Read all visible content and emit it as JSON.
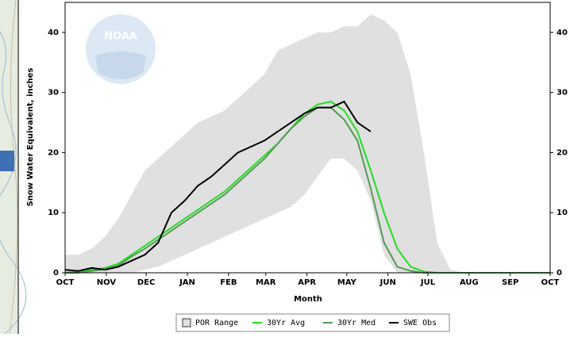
{
  "logo": "NOAA",
  "chart_data": {
    "type": "line",
    "x_label": "Month",
    "y_label": "Snow Water Equivalent, inches",
    "x": [
      0,
      10,
      20,
      30,
      40,
      50,
      60,
      70,
      80,
      90,
      100,
      110,
      120,
      130,
      140,
      150,
      160,
      170,
      180,
      190,
      200,
      210,
      220,
      230,
      240,
      250,
      260,
      270,
      280,
      290,
      300,
      310,
      320,
      330,
      340,
      350,
      360,
      365
    ],
    "xlim": [
      0,
      365
    ],
    "xticks": [
      {
        "value": 0,
        "label": "OCT"
      },
      {
        "value": 31,
        "label": "NOV"
      },
      {
        "value": 61,
        "label": "DEC"
      },
      {
        "value": 92,
        "label": "JAN"
      },
      {
        "value": 123,
        "label": "FEB"
      },
      {
        "value": 151,
        "label": "MAR"
      },
      {
        "value": 182,
        "label": "APR"
      },
      {
        "value": 212,
        "label": "MAY"
      },
      {
        "value": 243,
        "label": "JUN"
      },
      {
        "value": 273,
        "label": "JUL"
      },
      {
        "value": 304,
        "label": "AUG"
      },
      {
        "value": 335,
        "label": "SEP"
      },
      {
        "value": 365,
        "label": "OCT"
      }
    ],
    "ylim": [
      0,
      45
    ],
    "yticks": [
      0,
      10,
      20,
      30,
      40
    ],
    "grid": false,
    "series": [
      {
        "name": "POR Range",
        "color": "#e0e0e0",
        "values": [
          3,
          3,
          4,
          6,
          9,
          13,
          17,
          19,
          21,
          23,
          25,
          26,
          27,
          29,
          31,
          33,
          37,
          38,
          39,
          40,
          40,
          41,
          41,
          43,
          42,
          40,
          33,
          20,
          5,
          0.5,
          0,
          0,
          0,
          0,
          0,
          0,
          0,
          0.3
        ],
        "lower": [
          0,
          0,
          0,
          0,
          0,
          0,
          0.5,
          1,
          2,
          3,
          4,
          5,
          6,
          7,
          8,
          9,
          10,
          11,
          13,
          16,
          19,
          19,
          17,
          12,
          3,
          0,
          0,
          0,
          0,
          0,
          0,
          0,
          0,
          0,
          0,
          0,
          0,
          0
        ]
      },
      {
        "name": "30Yr Avg",
        "color": "#22dd22",
        "values": [
          0,
          0.2,
          0.5,
          0.8,
          1.5,
          3,
          4.5,
          6,
          7.5,
          9,
          10.5,
          12,
          13.5,
          15.5,
          17.5,
          19.5,
          21.5,
          24,
          26.5,
          28,
          28.5,
          27,
          23.5,
          17,
          10,
          4,
          1,
          0.2,
          0,
          0,
          0,
          0,
          0,
          0,
          0,
          0,
          0,
          0
        ]
      },
      {
        "name": "30Yr Med",
        "color": "#559955",
        "values": [
          0,
          0,
          0.3,
          0.6,
          1.2,
          2.7,
          4,
          5.5,
          7,
          8.5,
          10,
          11.5,
          13,
          15,
          17,
          19,
          21.5,
          24,
          26,
          27.5,
          27.5,
          25.5,
          22,
          14,
          5,
          1,
          0.3,
          0,
          0,
          0,
          0,
          0,
          0,
          0,
          0,
          0,
          0,
          0
        ]
      },
      {
        "name": "SWE Obs",
        "color": "#000000",
        "values": [
          0.5,
          0.3,
          0.8,
          0.5,
          1,
          2,
          3,
          5,
          10,
          12,
          14.5,
          16,
          18,
          20,
          21,
          22,
          23.5,
          25,
          26.5,
          27.5,
          27.5,
          28.5,
          25,
          23.5,
          null,
          null,
          null,
          null,
          null,
          null,
          null,
          null,
          null,
          null,
          null,
          null,
          null,
          null
        ]
      }
    ]
  }
}
